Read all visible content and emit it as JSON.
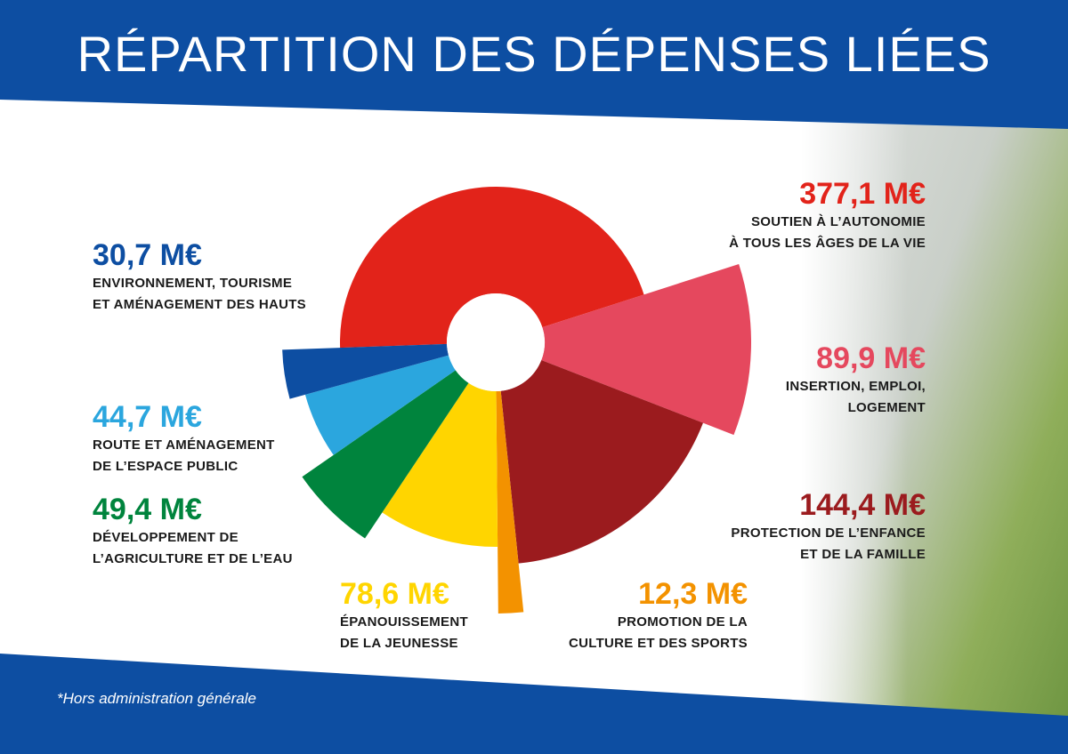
{
  "title": "RÉPARTITION DES DÉPENSES LIÉES",
  "note": "*Hors administration générale",
  "chart_data": {
    "type": "pie",
    "categories": [
      "SOUTIEN À L’AUTONOMIE\nÀ TOUS LES ÂGES DE LA VIE",
      "INSERTION, EMPLOI,\nLOGEMENT",
      "PROTECTION DE L’ENFANCE\nET DE LA FAMILLE",
      "PROMOTION DE LA\nCULTURE ET DES SPORTS",
      "ÉPANOUISSEMENT\nDE LA JEUNESSE",
      "DÉVELOPPEMENT DE\nL’AGRICULTURE ET DE L’EAU",
      "ROUTE ET AMÉNAGEMENT\nDE L’ESPACE PUBLIC",
      "ENVIRONNEMENT, TOURISME\nET AMÉNAGEMENT DES HAUTS"
    ],
    "values": [
      377.1,
      89.9,
      144.4,
      12.3,
      78.6,
      49.4,
      44.7,
      30.7
    ],
    "value_labels": [
      "377,1 M€",
      "89,9 M€",
      "144,4 M€",
      "12,3 M€",
      "78,6 M€",
      "49,4 M€",
      "44,7 M€",
      "30,7 M€"
    ],
    "colors": [
      "#e2231a",
      "#e5485e",
      "#9b1b1e",
      "#f39200",
      "#ffd500",
      "#00843d",
      "#2ba6de",
      "#0d4ea2"
    ]
  }
}
